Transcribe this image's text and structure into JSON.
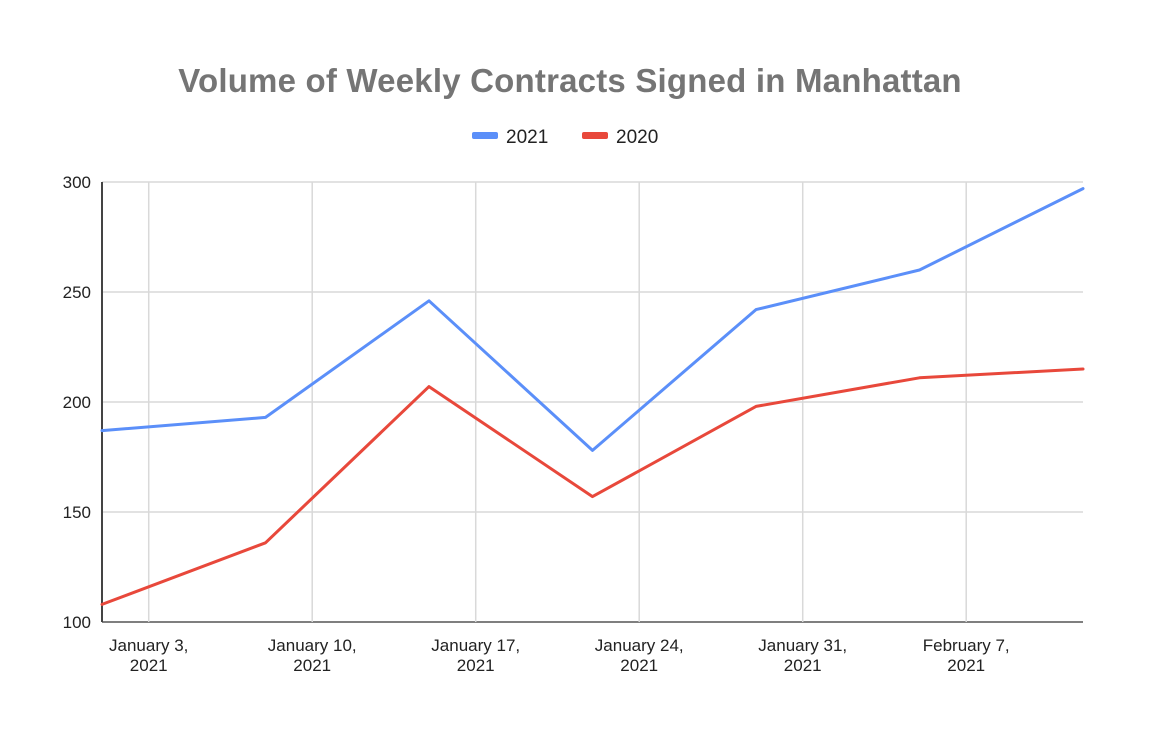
{
  "chart_data": {
    "type": "line",
    "title": "Volume of Weekly Contracts Signed in Manhattan",
    "xlabel": "",
    "ylabel": "",
    "x": [
      "2021-01-01",
      "2021-01-08",
      "2021-01-15",
      "2021-01-22",
      "2021-01-29",
      "2021-02-05",
      "2021-02-12"
    ],
    "x_ticks": [
      {
        "date": "2021-01-03",
        "line1": "January 3,",
        "line2": "2021"
      },
      {
        "date": "2021-01-10",
        "line1": "January 10,",
        "line2": "2021"
      },
      {
        "date": "2021-01-17",
        "line1": "January 17,",
        "line2": "2021"
      },
      {
        "date": "2021-01-24",
        "line1": "January 24,",
        "line2": "2021"
      },
      {
        "date": "2021-01-31",
        "line1": "January 31,",
        "line2": "2021"
      },
      {
        "date": "2021-02-07",
        "line1": "February 7,",
        "line2": "2021"
      }
    ],
    "xlim": [
      "2021-01-01",
      "2021-02-12"
    ],
    "ylim": [
      100,
      300
    ],
    "y_ticks": [
      100,
      150,
      200,
      250,
      300
    ],
    "grid": true,
    "legend_position": "top-center",
    "series": [
      {
        "name": "2021",
        "color": "#5b8ff9",
        "values": [
          187,
          193,
          246,
          178,
          242,
          260,
          297
        ]
      },
      {
        "name": "2020",
        "color": "#e8483b",
        "values": [
          108,
          136,
          207,
          157,
          198,
          211,
          215
        ]
      }
    ]
  }
}
